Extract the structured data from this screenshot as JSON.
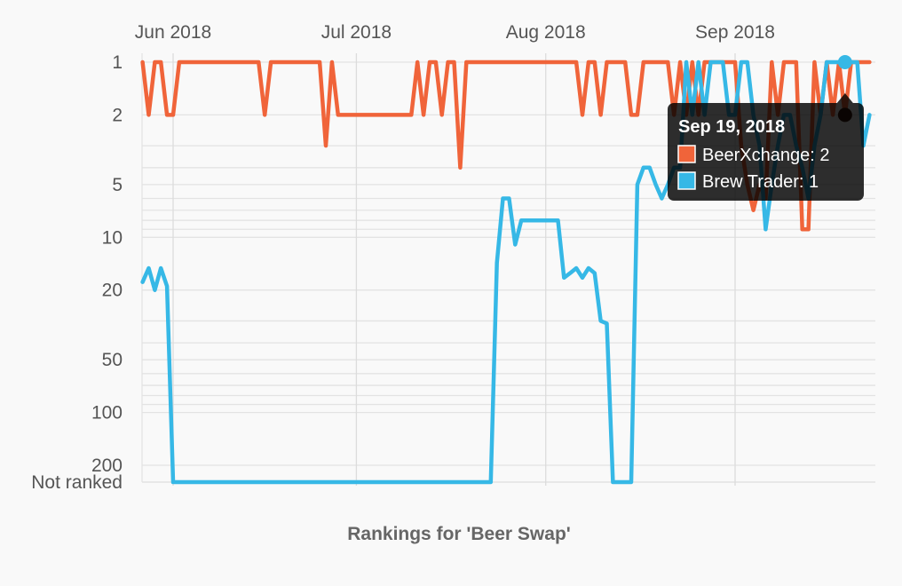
{
  "chart_data": {
    "type": "line",
    "title": "",
    "xlabel": "Rankings for 'Beer Swap'",
    "ylabel": "",
    "y_scale": "log-rank-inverted",
    "grid": true,
    "x_ticks": [
      "Jun 2018",
      "Jul 2018",
      "Aug 2018",
      "Sep 2018"
    ],
    "y_ticks": [
      "1",
      "2",
      "5",
      "10",
      "20",
      "50",
      "100",
      "200",
      "Not ranked"
    ],
    "series": [
      {
        "name": "BeerXchange",
        "color": "#f0643a",
        "x": [
          "2018-05-27",
          "2018-05-28",
          "2018-05-29",
          "2018-05-30",
          "2018-05-31",
          "2018-06-01",
          "2018-06-02",
          "2018-06-03",
          "2018-06-04",
          "2018-06-05",
          "2018-06-15",
          "2018-06-16",
          "2018-06-17",
          "2018-06-18",
          "2018-06-25",
          "2018-06-26",
          "2018-06-27",
          "2018-06-28",
          "2018-06-29",
          "2018-07-10",
          "2018-07-11",
          "2018-07-12",
          "2018-07-13",
          "2018-07-14",
          "2018-07-15",
          "2018-07-16",
          "2018-07-17",
          "2018-07-18",
          "2018-07-19",
          "2018-07-20",
          "2018-07-21",
          "2018-07-22",
          "2018-07-23",
          "2018-08-06",
          "2018-08-07",
          "2018-08-08",
          "2018-08-09",
          "2018-08-10",
          "2018-08-11",
          "2018-08-12",
          "2018-08-13",
          "2018-08-14",
          "2018-08-15",
          "2018-08-16",
          "2018-08-17",
          "2018-08-18",
          "2018-08-19",
          "2018-08-20",
          "2018-08-21",
          "2018-08-22",
          "2018-08-23",
          "2018-08-24",
          "2018-08-25",
          "2018-08-26",
          "2018-08-27",
          "2018-08-28",
          "2018-08-29",
          "2018-08-30",
          "2018-08-31",
          "2018-09-01",
          "2018-09-02",
          "2018-09-03",
          "2018-09-04",
          "2018-09-05",
          "2018-09-06",
          "2018-09-07",
          "2018-09-08",
          "2018-09-09",
          "2018-09-10",
          "2018-09-11",
          "2018-09-12",
          "2018-09-13",
          "2018-09-14",
          "2018-09-15",
          "2018-09-16",
          "2018-09-17",
          "2018-09-18",
          "2018-09-19",
          "2018-09-20",
          "2018-09-21",
          "2018-09-22",
          "2018-09-23"
        ],
        "y": [
          1,
          2,
          1,
          1,
          2,
          2,
          1,
          1,
          1,
          1,
          1,
          2,
          1,
          1,
          1,
          3,
          1,
          2,
          2,
          2,
          1,
          2,
          1,
          1,
          2,
          1,
          1,
          4,
          1,
          1,
          1,
          1,
          1,
          1,
          2,
          1,
          1,
          2,
          1,
          1,
          1,
          1,
          2,
          2,
          1,
          1,
          1,
          1,
          1,
          2,
          1,
          2,
          1,
          2,
          1,
          1,
          1,
          1,
          1,
          1,
          3,
          5,
          7,
          5,
          6,
          1,
          2,
          1,
          1,
          1,
          9,
          9,
          1,
          2,
          1,
          2,
          1,
          2,
          1,
          1,
          1,
          1
        ]
      },
      {
        "name": "Brew Trader",
        "color": "#36b8e6",
        "x": [
          "2018-05-27",
          "2018-05-28",
          "2018-05-29",
          "2018-05-30",
          "2018-05-31",
          "2018-06-01",
          "2018-06-02",
          "2018-07-23",
          "2018-07-24",
          "2018-07-25",
          "2018-07-26",
          "2018-07-27",
          "2018-07-28",
          "2018-08-03",
          "2018-08-04",
          "2018-08-05",
          "2018-08-06",
          "2018-08-07",
          "2018-08-08",
          "2018-08-09",
          "2018-08-10",
          "2018-08-11",
          "2018-08-12",
          "2018-08-13",
          "2018-08-14",
          "2018-08-15",
          "2018-08-16",
          "2018-08-17",
          "2018-08-18",
          "2018-08-19",
          "2018-08-20",
          "2018-08-21",
          "2018-08-22",
          "2018-08-23",
          "2018-08-24",
          "2018-08-25",
          "2018-08-26",
          "2018-08-27",
          "2018-08-28",
          "2018-08-29",
          "2018-08-30",
          "2018-08-31",
          "2018-09-01",
          "2018-09-02",
          "2018-09-03",
          "2018-09-04",
          "2018-09-05",
          "2018-09-06",
          "2018-09-07",
          "2018-09-08",
          "2018-09-09",
          "2018-09-10",
          "2018-09-11",
          "2018-09-12",
          "2018-09-13",
          "2018-09-14",
          "2018-09-15",
          "2018-09-16",
          "2018-09-17",
          "2018-09-18",
          "2018-09-19",
          "2018-09-20",
          "2018-09-21",
          "2018-09-22",
          "2018-09-23"
        ],
        "y": [
          18,
          15,
          20,
          15,
          19,
          "Not ranked",
          "Not ranked",
          "Not ranked",
          14,
          6,
          6,
          11,
          8,
          8,
          17,
          16,
          15,
          17,
          15,
          16,
          30,
          31,
          "Not ranked",
          "Not ranked",
          "Not ranked",
          "Not ranked",
          5,
          4,
          4,
          5,
          6,
          5,
          4,
          4,
          1,
          2,
          1,
          2,
          1,
          1,
          1,
          2,
          2,
          1,
          1,
          2,
          3,
          9,
          5,
          3,
          2,
          2,
          3,
          4,
          6,
          3,
          2,
          1,
          1,
          1,
          1,
          1,
          1,
          3,
          2
        ]
      }
    ],
    "tooltip": {
      "title": "Sep 19, 2018",
      "entries": [
        {
          "label": "BeerXchange: 2",
          "color": "#f0643a"
        },
        {
          "label": "Brew Trader: 1",
          "color": "#36b8e6"
        }
      ]
    }
  }
}
